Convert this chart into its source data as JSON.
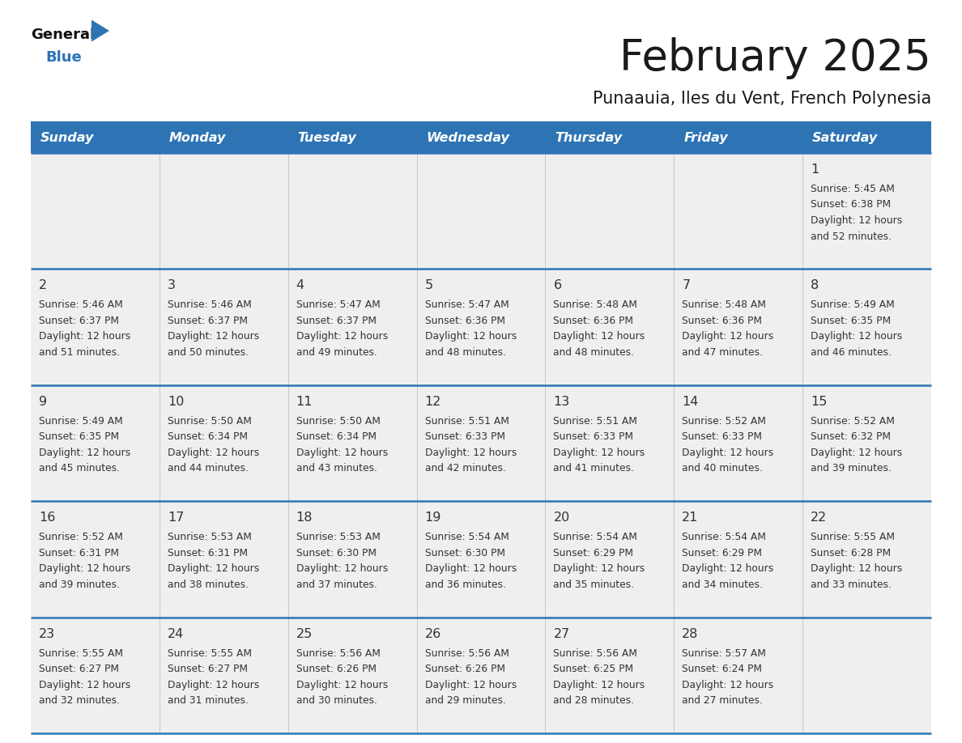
{
  "title": "February 2025",
  "subtitle": "Punaauia, Iles du Vent, French Polynesia",
  "days_of_week": [
    "Sunday",
    "Monday",
    "Tuesday",
    "Wednesday",
    "Thursday",
    "Friday",
    "Saturday"
  ],
  "header_bg": "#2E74B5",
  "header_text": "#FFFFFF",
  "row_bg": "#EFEFEF",
  "divider_color": "#2E74B5",
  "day_number_color": "#333333",
  "cell_text_color": "#333333",
  "title_color": "#1a1a1a",
  "subtitle_color": "#1a1a1a",
  "calendar_data": [
    [
      null,
      null,
      null,
      null,
      null,
      null,
      {
        "day": 1,
        "sunrise": "5:45 AM",
        "sunset": "6:38 PM",
        "daylight_line1": "Daylight: 12 hours",
        "daylight_line2": "and 52 minutes."
      }
    ],
    [
      {
        "day": 2,
        "sunrise": "5:46 AM",
        "sunset": "6:37 PM",
        "daylight_line1": "Daylight: 12 hours",
        "daylight_line2": "and 51 minutes."
      },
      {
        "day": 3,
        "sunrise": "5:46 AM",
        "sunset": "6:37 PM",
        "daylight_line1": "Daylight: 12 hours",
        "daylight_line2": "and 50 minutes."
      },
      {
        "day": 4,
        "sunrise": "5:47 AM",
        "sunset": "6:37 PM",
        "daylight_line1": "Daylight: 12 hours",
        "daylight_line2": "and 49 minutes."
      },
      {
        "day": 5,
        "sunrise": "5:47 AM",
        "sunset": "6:36 PM",
        "daylight_line1": "Daylight: 12 hours",
        "daylight_line2": "and 48 minutes."
      },
      {
        "day": 6,
        "sunrise": "5:48 AM",
        "sunset": "6:36 PM",
        "daylight_line1": "Daylight: 12 hours",
        "daylight_line2": "and 48 minutes."
      },
      {
        "day": 7,
        "sunrise": "5:48 AM",
        "sunset": "6:36 PM",
        "daylight_line1": "Daylight: 12 hours",
        "daylight_line2": "and 47 minutes."
      },
      {
        "day": 8,
        "sunrise": "5:49 AM",
        "sunset": "6:35 PM",
        "daylight_line1": "Daylight: 12 hours",
        "daylight_line2": "and 46 minutes."
      }
    ],
    [
      {
        "day": 9,
        "sunrise": "5:49 AM",
        "sunset": "6:35 PM",
        "daylight_line1": "Daylight: 12 hours",
        "daylight_line2": "and 45 minutes."
      },
      {
        "day": 10,
        "sunrise": "5:50 AM",
        "sunset": "6:34 PM",
        "daylight_line1": "Daylight: 12 hours",
        "daylight_line2": "and 44 minutes."
      },
      {
        "day": 11,
        "sunrise": "5:50 AM",
        "sunset": "6:34 PM",
        "daylight_line1": "Daylight: 12 hours",
        "daylight_line2": "and 43 minutes."
      },
      {
        "day": 12,
        "sunrise": "5:51 AM",
        "sunset": "6:33 PM",
        "daylight_line1": "Daylight: 12 hours",
        "daylight_line2": "and 42 minutes."
      },
      {
        "day": 13,
        "sunrise": "5:51 AM",
        "sunset": "6:33 PM",
        "daylight_line1": "Daylight: 12 hours",
        "daylight_line2": "and 41 minutes."
      },
      {
        "day": 14,
        "sunrise": "5:52 AM",
        "sunset": "6:33 PM",
        "daylight_line1": "Daylight: 12 hours",
        "daylight_line2": "and 40 minutes."
      },
      {
        "day": 15,
        "sunrise": "5:52 AM",
        "sunset": "6:32 PM",
        "daylight_line1": "Daylight: 12 hours",
        "daylight_line2": "and 39 minutes."
      }
    ],
    [
      {
        "day": 16,
        "sunrise": "5:52 AM",
        "sunset": "6:31 PM",
        "daylight_line1": "Daylight: 12 hours",
        "daylight_line2": "and 39 minutes."
      },
      {
        "day": 17,
        "sunrise": "5:53 AM",
        "sunset": "6:31 PM",
        "daylight_line1": "Daylight: 12 hours",
        "daylight_line2": "and 38 minutes."
      },
      {
        "day": 18,
        "sunrise": "5:53 AM",
        "sunset": "6:30 PM",
        "daylight_line1": "Daylight: 12 hours",
        "daylight_line2": "and 37 minutes."
      },
      {
        "day": 19,
        "sunrise": "5:54 AM",
        "sunset": "6:30 PM",
        "daylight_line1": "Daylight: 12 hours",
        "daylight_line2": "and 36 minutes."
      },
      {
        "day": 20,
        "sunrise": "5:54 AM",
        "sunset": "6:29 PM",
        "daylight_line1": "Daylight: 12 hours",
        "daylight_line2": "and 35 minutes."
      },
      {
        "day": 21,
        "sunrise": "5:54 AM",
        "sunset": "6:29 PM",
        "daylight_line1": "Daylight: 12 hours",
        "daylight_line2": "and 34 minutes."
      },
      {
        "day": 22,
        "sunrise": "5:55 AM",
        "sunset": "6:28 PM",
        "daylight_line1": "Daylight: 12 hours",
        "daylight_line2": "and 33 minutes."
      }
    ],
    [
      {
        "day": 23,
        "sunrise": "5:55 AM",
        "sunset": "6:27 PM",
        "daylight_line1": "Daylight: 12 hours",
        "daylight_line2": "and 32 minutes."
      },
      {
        "day": 24,
        "sunrise": "5:55 AM",
        "sunset": "6:27 PM",
        "daylight_line1": "Daylight: 12 hours",
        "daylight_line2": "and 31 minutes."
      },
      {
        "day": 25,
        "sunrise": "5:56 AM",
        "sunset": "6:26 PM",
        "daylight_line1": "Daylight: 12 hours",
        "daylight_line2": "and 30 minutes."
      },
      {
        "day": 26,
        "sunrise": "5:56 AM",
        "sunset": "6:26 PM",
        "daylight_line1": "Daylight: 12 hours",
        "daylight_line2": "and 29 minutes."
      },
      {
        "day": 27,
        "sunrise": "5:56 AM",
        "sunset": "6:25 PM",
        "daylight_line1": "Daylight: 12 hours",
        "daylight_line2": "and 28 minutes."
      },
      {
        "day": 28,
        "sunrise": "5:57 AM",
        "sunset": "6:24 PM",
        "daylight_line1": "Daylight: 12 hours",
        "daylight_line2": "and 27 minutes."
      },
      null
    ]
  ]
}
